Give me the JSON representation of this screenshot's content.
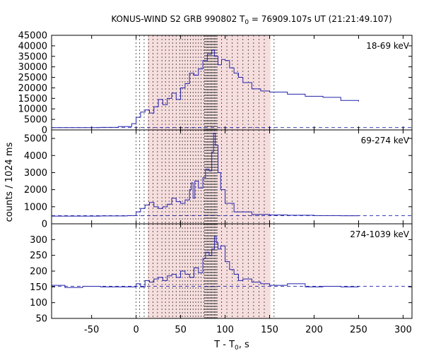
{
  "chart_data": {
    "type": "line",
    "title_prefix": "KONUS-WIND S2 GRB 990802 T",
    "title_sub": "0",
    "title_suffix": " = 76909.107s UT (21:21:49.107)",
    "xlabel_prefix": "T - T",
    "xlabel_sub": "0",
    "xlabel_suffix": ", s",
    "ylabel": "counts / 1024 ms",
    "xlim": [
      -95,
      310
    ],
    "xticks": [
      -50,
      0,
      50,
      100,
      150,
      200,
      250,
      300
    ],
    "series_color": "#2222aa",
    "shade_color": "#f7dede",
    "shade_range": [
      13,
      151
    ],
    "dense_range": [
      77,
      91
    ],
    "vlines_sparse": [
      0,
      4,
      9,
      14,
      19,
      24,
      29,
      33,
      37,
      41,
      45,
      49,
      52,
      55,
      58,
      61,
      64,
      67,
      70,
      73,
      76,
      96,
      102,
      108,
      114,
      120,
      126,
      132,
      138,
      144,
      155
    ],
    "panels": [
      {
        "label": "18-69 keV",
        "ylim": [
          0,
          45000
        ],
        "yticks": [
          0,
          5000,
          10000,
          15000,
          20000,
          25000,
          30000,
          35000,
          40000,
          45000
        ],
        "background": 1100,
        "x": [
          -95,
          -40,
          -20,
          -5,
          0,
          5,
          10,
          15,
          20,
          25,
          30,
          35,
          40,
          45,
          50,
          55,
          60,
          65,
          70,
          75,
          80,
          85,
          88,
          92,
          96,
          100,
          105,
          110,
          115,
          120,
          130,
          140,
          150,
          170,
          190,
          210,
          230,
          250
        ],
        "y": [
          1100,
          1200,
          1600,
          3000,
          6000,
          8500,
          9500,
          8000,
          11000,
          14500,
          12000,
          15000,
          17500,
          14500,
          20000,
          22000,
          27000,
          26000,
          29000,
          33000,
          36000,
          38000,
          35000,
          31000,
          33500,
          33000,
          29500,
          27000,
          25000,
          22500,
          19500,
          18500,
          18000,
          17000,
          16000,
          15500,
          14000,
          13500
        ]
      },
      {
        "label": "69-274 keV",
        "ylim": [
          0,
          5500
        ],
        "yticks": [
          0,
          1000,
          2000,
          3000,
          4000,
          5000
        ],
        "background": 480,
        "x": [
          -95,
          -40,
          -10,
          0,
          5,
          10,
          15,
          20,
          25,
          30,
          35,
          40,
          45,
          50,
          55,
          60,
          62,
          64,
          66,
          70,
          75,
          78,
          82,
          85,
          87,
          89,
          92,
          95,
          100,
          110,
          130,
          150,
          170,
          200,
          230,
          250
        ],
        "y": [
          450,
          460,
          480,
          700,
          900,
          1100,
          1250,
          1000,
          900,
          1000,
          1150,
          1500,
          1300,
          1200,
          1400,
          2000,
          2400,
          1500,
          2500,
          2100,
          2700,
          3200,
          3100,
          4200,
          5300,
          4600,
          3000,
          2000,
          1200,
          700,
          550,
          520,
          500,
          480,
          470,
          460
        ]
      },
      {
        "label": "274-1039 keV",
        "ylim": [
          50,
          350
        ],
        "yticks": [
          50,
          100,
          150,
          200,
          250,
          300
        ],
        "background": 152,
        "x": [
          -95,
          -80,
          -60,
          -40,
          -20,
          0,
          5,
          10,
          15,
          20,
          25,
          30,
          35,
          40,
          45,
          50,
          55,
          60,
          65,
          70,
          75,
          78,
          82,
          85,
          88,
          90,
          92,
          95,
          100,
          105,
          110,
          115,
          120,
          130,
          140,
          150,
          170,
          190,
          210,
          230,
          250
        ],
        "y": [
          155,
          148,
          152,
          150,
          150,
          160,
          150,
          170,
          165,
          175,
          180,
          170,
          185,
          190,
          180,
          200,
          190,
          180,
          210,
          195,
          240,
          260,
          250,
          270,
          310,
          290,
          270,
          280,
          230,
          205,
          190,
          170,
          175,
          165,
          160,
          155,
          160,
          150,
          152,
          150,
          150
        ]
      }
    ]
  }
}
